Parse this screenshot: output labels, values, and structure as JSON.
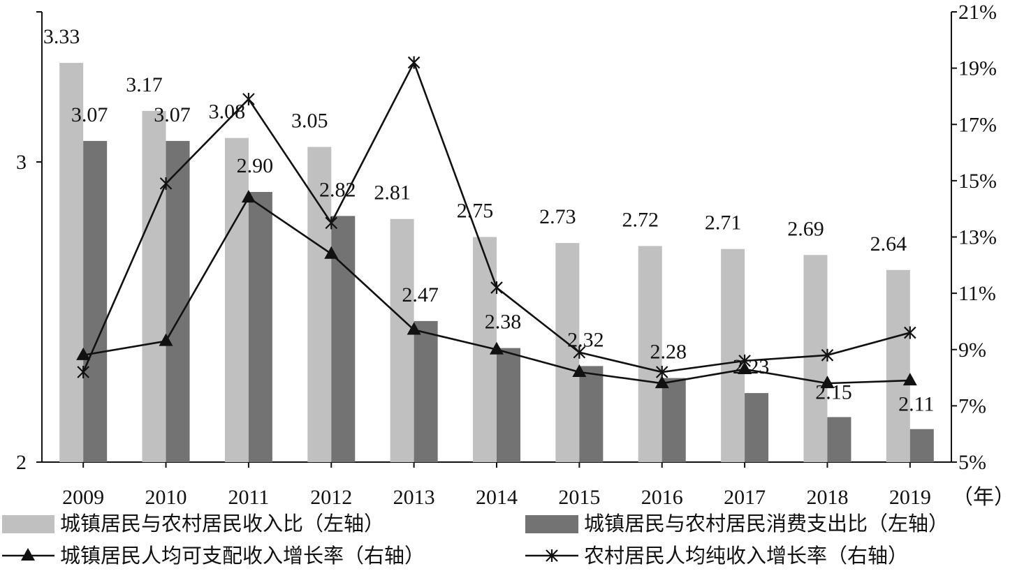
{
  "chart_data": {
    "type": "bar",
    "categories": [
      "2009",
      "2010",
      "2011",
      "2012",
      "2013",
      "2014",
      "2015",
      "2016",
      "2017",
      "2018",
      "2019"
    ],
    "x_unit_label": "（年）",
    "left_axis": {
      "range": [
        2,
        3.5
      ],
      "ticks": [
        "2",
        "3"
      ]
    },
    "right_axis": {
      "range": [
        5,
        21
      ],
      "ticks": [
        "5%",
        "7%",
        "9%",
        "11%",
        "13%",
        "15%",
        "17%",
        "19%",
        "21%"
      ]
    },
    "bar_series": [
      {
        "name": "城镇居民与农村居民收入比（左轴）",
        "axis": "left",
        "color": "#c0c0c0",
        "values": [
          3.33,
          3.17,
          3.08,
          3.05,
          2.81,
          2.75,
          2.73,
          2.72,
          2.71,
          2.69,
          2.64
        ],
        "labels": [
          "3.33",
          "3.17",
          "3.08",
          "3.05",
          "2.81",
          "2.75",
          "2.73",
          "2.72",
          "2.71",
          "2.69",
          "2.64"
        ]
      },
      {
        "name": "城镇居民与农村居民消费支出比（左轴）",
        "axis": "left",
        "color": "#737373",
        "values": [
          3.07,
          3.07,
          2.9,
          2.82,
          2.47,
          2.38,
          2.32,
          2.28,
          2.23,
          2.15,
          2.11
        ],
        "labels": [
          "3.07",
          "3.07",
          "2.90",
          "2.82",
          "2.47",
          "2.38",
          "2.32",
          "2.28",
          "2.23",
          "2.15",
          "2.11"
        ]
      }
    ],
    "line_series": [
      {
        "name": "城镇居民人均可支配收入增长率（右轴）",
        "axis": "right",
        "marker": "triangle",
        "values": [
          8.8,
          9.3,
          14.4,
          12.4,
          9.7,
          9.0,
          8.2,
          7.8,
          8.3,
          7.8,
          7.9
        ]
      },
      {
        "name": "农村居民人均纯收入增长率（右轴）",
        "axis": "right",
        "marker": "star",
        "values": [
          8.2,
          14.9,
          17.9,
          13.5,
          19.2,
          11.2,
          8.9,
          8.2,
          8.6,
          8.8,
          9.6
        ]
      }
    ],
    "legend_position": "bottom"
  }
}
